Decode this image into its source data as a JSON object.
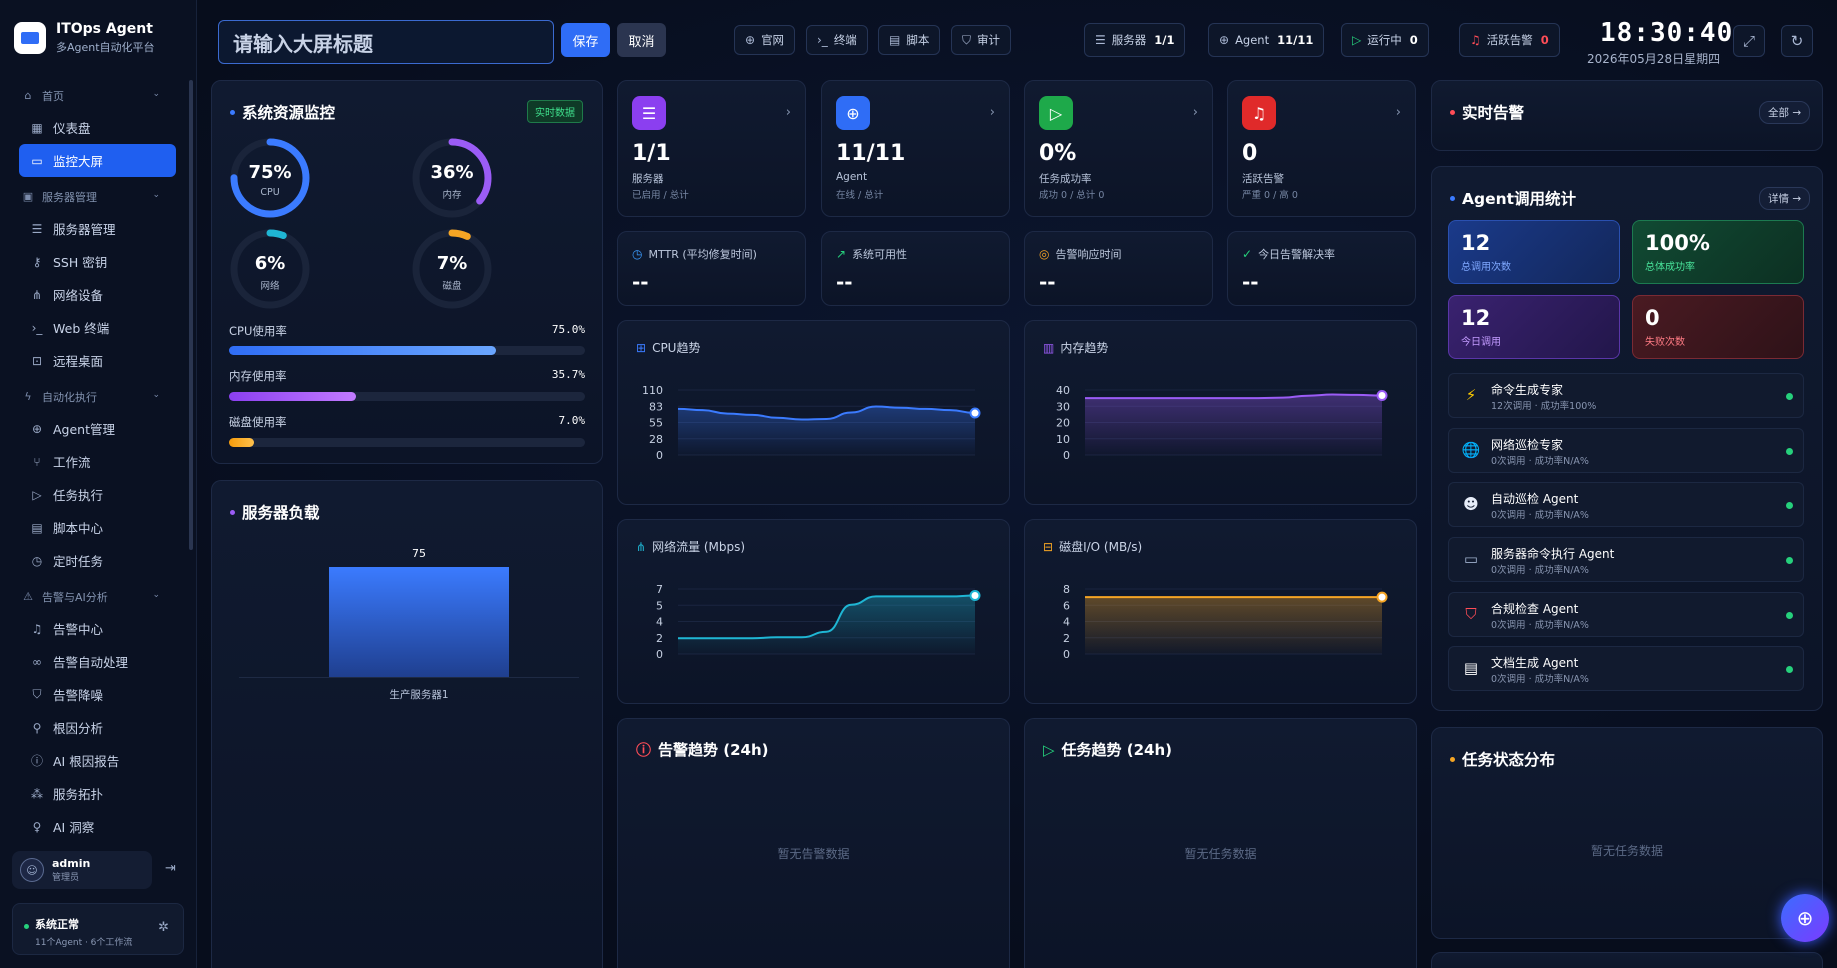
{
  "brand": {
    "name": "ITOps Agent",
    "subtitle": "多Agent自动化平台"
  },
  "sidebar": {
    "groups": [
      {
        "label": "首页",
        "items": [
          {
            "label": "仪表盘",
            "icon": "grid-icon"
          },
          {
            "label": "监控大屏",
            "icon": "monitor-icon",
            "active": true
          }
        ]
      },
      {
        "label": "服务器管理",
        "items": [
          {
            "label": "服务器管理",
            "icon": "server-icon"
          },
          {
            "label": "SSH 密钥",
            "icon": "key-icon"
          },
          {
            "label": "网络设备",
            "icon": "network-icon"
          },
          {
            "label": "Web 终端",
            "icon": "terminal-icon"
          },
          {
            "label": "远程桌面",
            "icon": "desktop-icon"
          }
        ]
      },
      {
        "label": "自动化执行",
        "items": [
          {
            "label": "Agent管理",
            "icon": "robot-icon"
          },
          {
            "label": "工作流",
            "icon": "workflow-icon"
          },
          {
            "label": "任务执行",
            "icon": "play-icon"
          },
          {
            "label": "脚本中心",
            "icon": "script-icon"
          },
          {
            "label": "定时任务",
            "icon": "clock-icon"
          }
        ]
      },
      {
        "label": "告警与AI分析",
        "items": [
          {
            "label": "告警中心",
            "icon": "bell-icon"
          },
          {
            "label": "告警自动处理",
            "icon": "link-icon"
          },
          {
            "label": "告警降噪",
            "icon": "shield-icon"
          },
          {
            "label": "根因分析",
            "icon": "search-icon"
          },
          {
            "label": "AI 根因报告",
            "icon": "info-icon"
          },
          {
            "label": "服务拓扑",
            "icon": "topology-icon"
          },
          {
            "label": "AI 洞察",
            "icon": "bulb-icon"
          }
        ]
      }
    ],
    "user": {
      "name": "admin",
      "role": "管理员"
    },
    "status": {
      "title": "系统正常",
      "detail": "11个Agent · 6个工作流"
    }
  },
  "topbar": {
    "title_placeholder": "请输入大屏标题",
    "save": "保存",
    "cancel": "取消",
    "links": [
      "官网",
      "终端",
      "脚本",
      "审计"
    ],
    "servers_label": "服务器",
    "servers_value": "1/1",
    "agent_label": "Agent",
    "agent_value": "11/11",
    "running_label": "运行中",
    "running_value": "0",
    "alerts_label": "活跃告警",
    "alerts_value": "0",
    "time": "18:30:40",
    "date": "2026年05月28日星期四"
  },
  "resources": {
    "title": "系统资源监控",
    "badge": "实时数据",
    "rings": [
      {
        "label": "CPU",
        "value": "75%",
        "pct": 75,
        "color": "#3b7bff"
      },
      {
        "label": "内存",
        "value": "36%",
        "pct": 36,
        "color": "#9b5cf6"
      },
      {
        "label": "网络",
        "value": "6%",
        "pct": 6,
        "color": "#1fb6d4"
      },
      {
        "label": "磁盘",
        "value": "7%",
        "pct": 7,
        "color": "#f5a524"
      }
    ],
    "bars": [
      {
        "label": "CPU使用率",
        "value": "75.0%",
        "pct": 75
      },
      {
        "label": "内存使用率",
        "value": "35.7%",
        "pct": 35.7
      },
      {
        "label": "磁盘使用率",
        "value": "7.0%",
        "pct": 7
      }
    ]
  },
  "server_load": {
    "title": "服务器负载",
    "server": "生产服务器1",
    "value": "75",
    "load": 75
  },
  "stat_cards": [
    {
      "big": "1/1",
      "s1": "服务器",
      "s2": "已启用 / 总计",
      "color": "#8b3ff0",
      "icon": "server-icon"
    },
    {
      "big": "11/11",
      "s1": "Agent",
      "s2": "在线 / 总计",
      "color": "#2f6df6",
      "icon": "robot-icon"
    },
    {
      "big": "0%",
      "s1": "任务成功率",
      "s2": "成功 0 / 总计 0",
      "color": "#1ea94a",
      "icon": "play-icon"
    },
    {
      "big": "0",
      "s1": "活跃告警",
      "s2": "严重 0 / 高 0",
      "color": "#e02a2a",
      "icon": "bell-icon"
    }
  ],
  "metric_cards": [
    {
      "label": "MTTR (平均修复时间)",
      "value": "--",
      "icon": "clock-icon",
      "color": "#3b9bff"
    },
    {
      "label": "系统可用性",
      "value": "--",
      "icon": "trend-up-icon",
      "color": "#26d07c"
    },
    {
      "label": "告警响应时间",
      "value": "--",
      "icon": "target-icon",
      "color": "#f5a524"
    },
    {
      "label": "今日告警解决率",
      "value": "--",
      "icon": "check-circle-icon",
      "color": "#26d07c"
    }
  ],
  "chart_data": [
    {
      "type": "area",
      "title": "CPU趋势",
      "y_ticks": [
        "110",
        "83",
        "55",
        "28",
        "0"
      ],
      "ylim": [
        0,
        110
      ],
      "values": [
        78,
        76,
        70,
        68,
        63,
        60,
        61,
        72,
        82,
        80,
        78,
        76,
        71
      ],
      "color": "#3b7bff"
    },
    {
      "type": "area",
      "title": "内存趋势",
      "y_ticks": [
        "40",
        "30",
        "20",
        "10",
        "0"
      ],
      "ylim": [
        0,
        40
      ],
      "values": [
        35,
        35,
        35,
        35,
        35,
        35,
        35,
        35,
        35.3,
        36.5,
        37.2,
        37.0,
        36.6
      ],
      "color": "#9b5cf6"
    },
    {
      "type": "area",
      "title": "网络流量 (Mbps)",
      "y_ticks": [
        "7",
        "5",
        "4",
        "2",
        "0"
      ],
      "ylim": [
        0,
        7
      ],
      "values": [
        1.7,
        1.7,
        1.7,
        1.7,
        1.8,
        1.8,
        2.4,
        5.3,
        6.2,
        6.2,
        6.2,
        6.2,
        6.3
      ],
      "color": "#1fb6d4"
    },
    {
      "type": "area",
      "title": "磁盘I/O (MB/s)",
      "y_ticks": [
        "8",
        "6",
        "4",
        "2",
        "0"
      ],
      "ylim": [
        0,
        8
      ],
      "values": [
        7,
        7,
        7,
        7,
        7,
        7,
        7,
        7,
        7,
        7,
        7,
        7,
        7
      ],
      "color": "#f5a524"
    }
  ],
  "alert_trend": {
    "title": "告警趋势 (24h)",
    "empty": "暂无告警数据"
  },
  "task_trend": {
    "title": "任务趋势 (24h)",
    "empty": "暂无任务数据"
  },
  "realtime_alerts": {
    "title": "实时告警",
    "button": "全部"
  },
  "agent_stats": {
    "title": "Agent调用统计",
    "button": "详情",
    "kpis": [
      {
        "value": "12",
        "label": "总调用次数"
      },
      {
        "value": "100%",
        "label": "总体成功率"
      },
      {
        "value": "12",
        "label": "今日调用"
      },
      {
        "value": "0",
        "label": "失败次数"
      }
    ],
    "agents": [
      {
        "name": "命令生成专家",
        "stat": "12次调用 · 成功率100%",
        "icon": "lightning-icon",
        "glyph": "⚡"
      },
      {
        "name": "网络巡检专家",
        "stat": "0次调用 · 成功率N/A%",
        "icon": "globe-icon",
        "glyph": "🌐"
      },
      {
        "name": "自动巡检 Agent",
        "stat": "0次调用 · 成功率N/A%",
        "icon": "robot-face-icon",
        "glyph": "🤖"
      },
      {
        "name": "服务器命令执行 Agent",
        "stat": "0次调用 · 成功率N/A%",
        "icon": "laptop-icon",
        "glyph": "💻"
      },
      {
        "name": "合规检查 Agent",
        "stat": "0次调用 · 成功率N/A%",
        "icon": "shield-icon",
        "glyph": "🛡"
      },
      {
        "name": "文档生成 Agent",
        "stat": "0次调用 · 成功率N/A%",
        "icon": "document-icon",
        "glyph": "📄"
      }
    ]
  },
  "task_status": {
    "title": "任务状态分布",
    "empty": "暂无任务数据"
  }
}
